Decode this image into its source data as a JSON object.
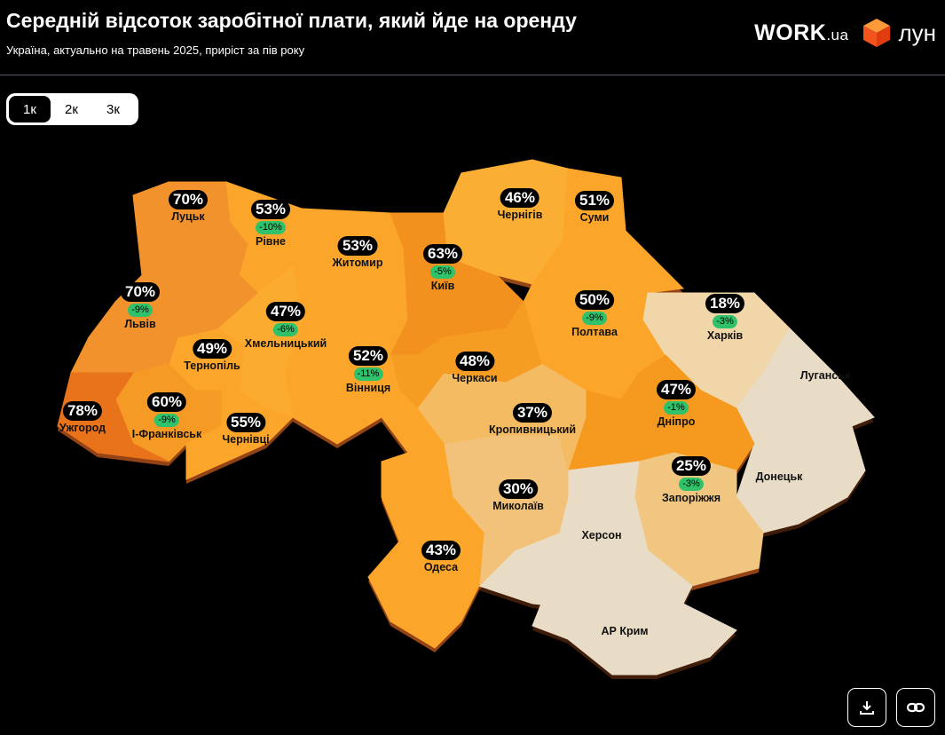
{
  "header": {
    "title": "Середній відсоток заробітної плати, який йде на оренду",
    "subtitle": "Україна, актуально на травень 2025, приріст за пів року",
    "logo_work": "WORK",
    "logo_work_suffix": ".ua",
    "logo_lun": "лун"
  },
  "tabs": [
    {
      "label": "1к",
      "active": true
    },
    {
      "label": "2к",
      "active": false
    },
    {
      "label": "3к",
      "active": false
    }
  ],
  "colors": {
    "background": "#000000",
    "change_badge": "#2fc26a",
    "no_data": "#e9dcc7"
  },
  "regions": [
    {
      "id": "volyn",
      "name": "Луцьк",
      "value": "70%",
      "change": "",
      "color": "#f2922c"
    },
    {
      "id": "rivne",
      "name": "Рівне",
      "value": "53%",
      "change": "-10%",
      "color": "#fba62a"
    },
    {
      "id": "zhytomyr",
      "name": "Житомир",
      "value": "53%",
      "change": "",
      "color": "#fba62a"
    },
    {
      "id": "kyiv",
      "name": "Київ",
      "value": "63%",
      "change": "-5%",
      "color": "#f3911f"
    },
    {
      "id": "chernihiv",
      "name": "Чернігів",
      "value": "46%",
      "change": "",
      "color": "#fbae34"
    },
    {
      "id": "sumy",
      "name": "Суми",
      "value": "51%",
      "change": "",
      "color": "#fba62a"
    },
    {
      "id": "poltava",
      "name": "Полтава",
      "value": "50%",
      "change": "-9%",
      "color": "#fba62a"
    },
    {
      "id": "kharkiv",
      "name": "Харків",
      "value": "18%",
      "change": "-3%",
      "color": "#f1d6aa"
    },
    {
      "id": "luhansk",
      "name": "Луганськ",
      "value": "",
      "change": "",
      "color": "#e9dcc7"
    },
    {
      "id": "donetsk",
      "name": "Донецьк",
      "value": "",
      "change": "",
      "color": "#e9dcc7"
    },
    {
      "id": "dnipro",
      "name": "Дніпро",
      "value": "47%",
      "change": "-1%",
      "color": "#f59a1e"
    },
    {
      "id": "zaporizhzhia",
      "name": "Запоріжжя",
      "value": "25%",
      "change": "-3%",
      "color": "#f0c680"
    },
    {
      "id": "kherson",
      "name": "Херсон",
      "value": "",
      "change": "",
      "color": "#e9dcc7"
    },
    {
      "id": "crimea",
      "name": "АР Крим",
      "value": "",
      "change": "",
      "color": "#e9dcc7"
    },
    {
      "id": "mykolaiv",
      "name": "Миколаїв",
      "value": "30%",
      "change": "",
      "color": "#f2c27a"
    },
    {
      "id": "kropyvnytskyi",
      "name": "Кропивницький",
      "value": "37%",
      "change": "",
      "color": "#f4bb62"
    },
    {
      "id": "cherkasy",
      "name": "Черкаси",
      "value": "48%",
      "change": "",
      "color": "#f59c22"
    },
    {
      "id": "vinnytsia",
      "name": "Вінниця",
      "value": "52%",
      "change": "-11%",
      "color": "#fba62a"
    },
    {
      "id": "odesa",
      "name": "Одеса",
      "value": "43%",
      "change": "",
      "color": "#fba62a"
    },
    {
      "id": "khmelnytskyi",
      "name": "Хмельницький",
      "value": "47%",
      "change": "-6%",
      "color": "#fbab30"
    },
    {
      "id": "ternopil",
      "name": "Тернопіль",
      "value": "49%",
      "change": "",
      "color": "#fba62a"
    },
    {
      "id": "lviv",
      "name": "Львів",
      "value": "70%",
      "change": "-9%",
      "color": "#f2922c"
    },
    {
      "id": "ivano_frankivsk",
      "name": "І-Франківськ",
      "value": "60%",
      "change": "-9%",
      "color": "#f59a24"
    },
    {
      "id": "chernivtsi",
      "name": "Чернівці",
      "value": "55%",
      "change": "",
      "color": "#fba62a"
    },
    {
      "id": "zakarpattia",
      "name": "Ужгород",
      "value": "78%",
      "change": "",
      "color": "#e8731a"
    }
  ],
  "actions": {
    "download_icon": "download-icon",
    "link_icon": "link-icon"
  }
}
